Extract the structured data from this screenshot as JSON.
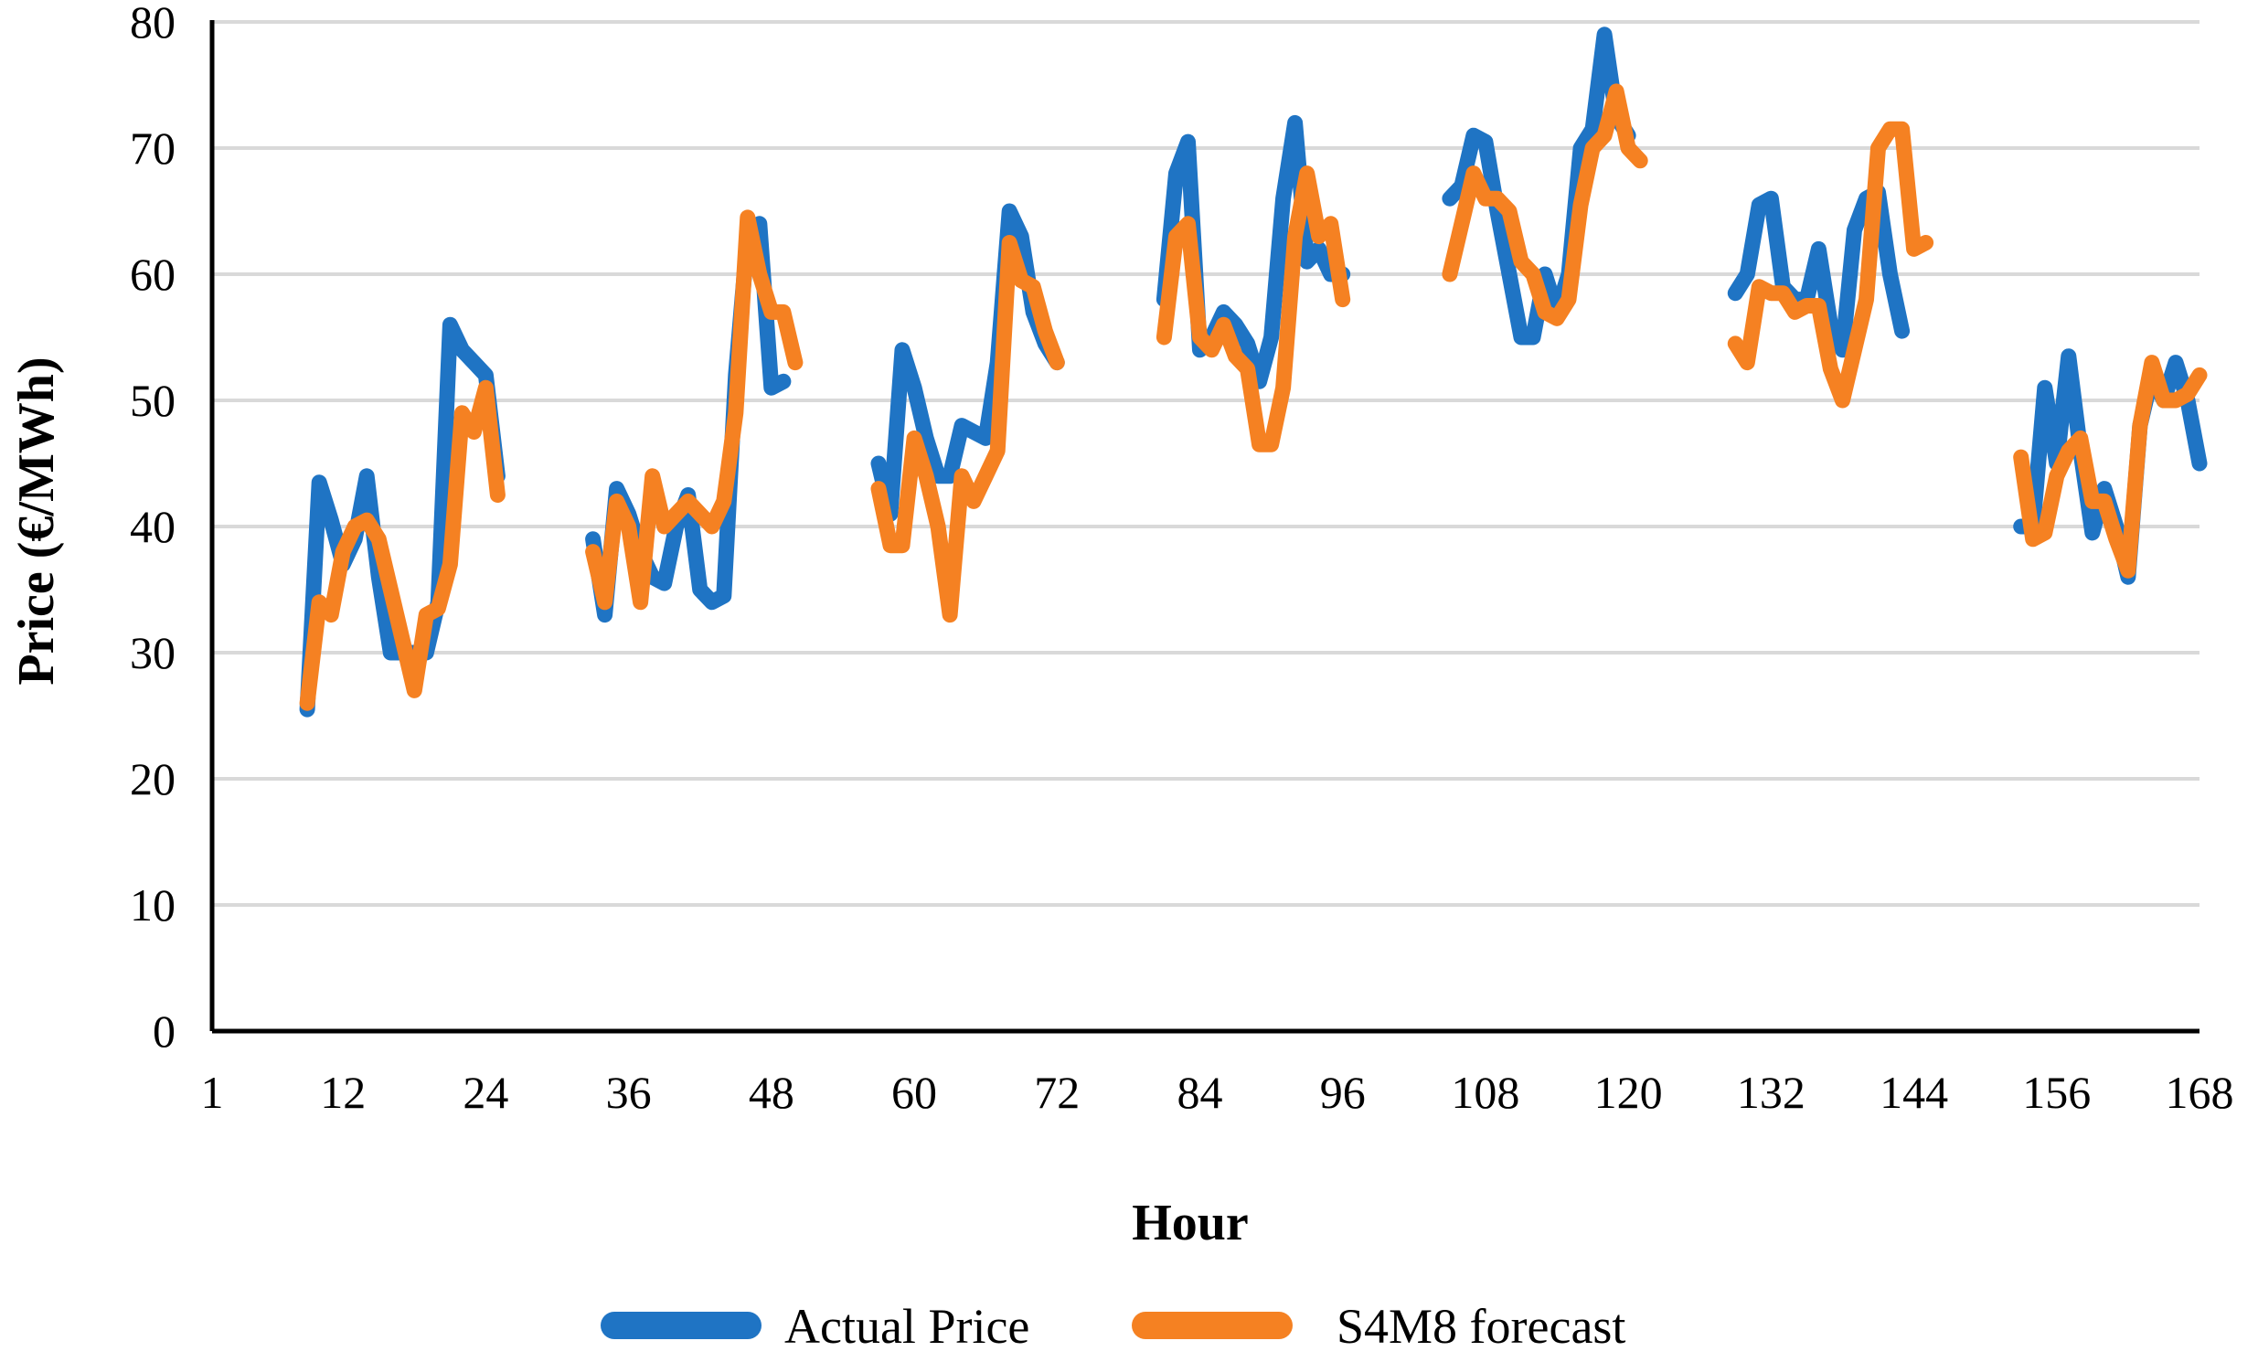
{
  "chart_data": {
    "type": "line",
    "title": "",
    "xlabel": "Hour",
    "ylabel": "Price (€/MWh)",
    "xlim": [
      1,
      168
    ],
    "ylim": [
      0,
      80
    ],
    "x_ticks": [
      1,
      12,
      24,
      36,
      48,
      60,
      72,
      84,
      96,
      108,
      120,
      132,
      144,
      156,
      168
    ],
    "y_ticks": [
      0,
      10,
      20,
      30,
      40,
      50,
      60,
      70,
      80
    ],
    "x_tick_labels": [
      "1",
      "12",
      "24",
      "36",
      "48",
      "60",
      "72",
      "84",
      "96",
      "108",
      "120",
      "132",
      "144",
      "156",
      "168"
    ],
    "y_tick_labels": [
      "0",
      "10",
      "20",
      "30",
      "40",
      "50",
      "60",
      "70",
      "80"
    ],
    "grid": true,
    "legend_position": "bottom",
    "series": [
      {
        "name": "Actual Price",
        "color": "#1f74c4",
        "segments": [
          [
            [
              9,
              25.5
            ],
            [
              10,
              43.5
            ],
            [
              11,
              40.5
            ],
            [
              12,
              37
            ],
            [
              13,
              39
            ],
            [
              14,
              44
            ],
            [
              15,
              36
            ],
            [
              16,
              30
            ],
            [
              17,
              30
            ],
            [
              18,
              30
            ],
            [
              19,
              30
            ],
            [
              20,
              34
            ],
            [
              21,
              56
            ],
            [
              22,
              54
            ],
            [
              23,
              53
            ],
            [
              24,
              52
            ],
            [
              25,
              44
            ]
          ],
          [
            [
              33,
              39
            ],
            [
              34,
              33
            ],
            [
              35,
              43
            ],
            [
              36,
              41
            ],
            [
              37,
              38
            ],
            [
              38,
              36
            ],
            [
              39,
              35.5
            ],
            [
              40,
              40
            ],
            [
              41,
              42.5
            ],
            [
              42,
              35
            ],
            [
              43,
              34
            ],
            [
              44,
              34.5
            ],
            [
              45,
              52
            ],
            [
              46,
              63
            ],
            [
              47,
              64
            ],
            [
              48,
              51
            ],
            [
              49,
              51.5
            ]
          ],
          [
            [
              57,
              45
            ],
            [
              58,
              41
            ],
            [
              59,
              54
            ],
            [
              60,
              51
            ],
            [
              61,
              47
            ],
            [
              62,
              44
            ],
            [
              63,
              44
            ],
            [
              64,
              48
            ],
            [
              65,
              47.5
            ],
            [
              66,
              47
            ],
            [
              67,
              53
            ],
            [
              68,
              65
            ],
            [
              69,
              63
            ],
            [
              70,
              57
            ],
            [
              71,
              54.5
            ],
            [
              72,
              53
            ]
          ],
          [
            [
              81,
              58
            ],
            [
              82,
              68
            ],
            [
              83,
              70.5
            ],
            [
              84,
              54
            ],
            [
              85,
              55
            ],
            [
              86,
              57
            ],
            [
              87,
              56
            ],
            [
              88,
              54.5
            ],
            [
              89,
              51.5
            ],
            [
              90,
              55
            ],
            [
              91,
              66
            ],
            [
              92,
              72
            ],
            [
              93,
              61
            ],
            [
              94,
              62
            ],
            [
              95,
              60
            ],
            [
              96,
              60
            ]
          ],
          [
            [
              105,
              66
            ],
            [
              106,
              67
            ],
            [
              107,
              71
            ],
            [
              108,
              70.5
            ],
            [
              109,
              65
            ],
            [
              110,
              60
            ],
            [
              111,
              55
            ],
            [
              112,
              55
            ],
            [
              113,
              60
            ],
            [
              114,
              57
            ],
            [
              115,
              60
            ],
            [
              116,
              70
            ],
            [
              117,
              71.5
            ],
            [
              118,
              79
            ],
            [
              119,
              72.5
            ],
            [
              120,
              71
            ]
          ],
          [
            [
              129,
              58.5
            ],
            [
              130,
              60
            ],
            [
              131,
              65.5
            ],
            [
              132,
              66
            ],
            [
              133,
              59
            ],
            [
              134,
              58
            ],
            [
              135,
              58
            ],
            [
              136,
              62
            ],
            [
              137,
              56
            ],
            [
              138,
              54
            ],
            [
              139,
              63.5
            ],
            [
              140,
              66
            ],
            [
              141,
              66.5
            ],
            [
              142,
              60
            ],
            [
              143,
              55.5
            ]
          ],
          [
            [
              153,
              40
            ],
            [
              154,
              40
            ],
            [
              155,
              51
            ],
            [
              156,
              45
            ],
            [
              157,
              53.5
            ],
            [
              158,
              46
            ],
            [
              159,
              39.5
            ],
            [
              160,
              43
            ],
            [
              161,
              40
            ],
            [
              162,
              36
            ],
            [
              163,
              48
            ],
            [
              164,
              52
            ],
            [
              165,
              50
            ],
            [
              166,
              53
            ],
            [
              167,
              50
            ],
            [
              168,
              45
            ]
          ]
        ]
      },
      {
        "name": "S4M8 forecast",
        "color": "#f58122",
        "segments": [
          [
            [
              9,
              26
            ],
            [
              10,
              34
            ],
            [
              11,
              33
            ],
            [
              12,
              38
            ],
            [
              13,
              40
            ],
            [
              14,
              40.5
            ],
            [
              15,
              39
            ],
            [
              16,
              35
            ],
            [
              17,
              31
            ],
            [
              18,
              27
            ],
            [
              19,
              33
            ],
            [
              20,
              33.5
            ],
            [
              21,
              37
            ],
            [
              22,
              49
            ],
            [
              23,
              47.5
            ],
            [
              24,
              51
            ],
            [
              25,
              42.5
            ]
          ],
          [
            [
              33,
              38
            ],
            [
              34,
              34
            ],
            [
              35,
              42
            ],
            [
              36,
              40
            ],
            [
              37,
              34
            ],
            [
              38,
              44
            ],
            [
              39,
              40
            ],
            [
              40,
              41
            ],
            [
              41,
              42
            ],
            [
              42,
              41
            ],
            [
              43,
              40
            ],
            [
              44,
              42
            ],
            [
              45,
              49
            ],
            [
              46,
              64.5
            ],
            [
              47,
              60
            ],
            [
              48,
              57
            ],
            [
              49,
              57
            ],
            [
              50,
              53
            ]
          ],
          [
            [
              57,
              43
            ],
            [
              58,
              38.5
            ],
            [
              59,
              38.5
            ],
            [
              60,
              47
            ],
            [
              61,
              44
            ],
            [
              62,
              40
            ],
            [
              63,
              33
            ],
            [
              64,
              44
            ],
            [
              65,
              42
            ],
            [
              66,
              44
            ],
            [
              67,
              46
            ],
            [
              68,
              62.5
            ],
            [
              69,
              59.5
            ],
            [
              70,
              59
            ],
            [
              71,
              55.5
            ],
            [
              72,
              53
            ]
          ],
          [
            [
              81,
              55
            ],
            [
              82,
              63
            ],
            [
              83,
              64
            ],
            [
              84,
              55
            ],
            [
              85,
              54
            ],
            [
              86,
              56
            ],
            [
              87,
              53.5
            ],
            [
              88,
              52.5
            ],
            [
              89,
              46.5
            ],
            [
              90,
              46.5
            ],
            [
              91,
              51
            ],
            [
              92,
              63
            ],
            [
              93,
              68
            ],
            [
              94,
              63
            ],
            [
              95,
              64
            ],
            [
              96,
              58
            ]
          ],
          [
            [
              105,
              60
            ],
            [
              106,
              64
            ],
            [
              107,
              68
            ],
            [
              108,
              66
            ],
            [
              109,
              66
            ],
            [
              110,
              65
            ],
            [
              111,
              61
            ],
            [
              112,
              60
            ],
            [
              113,
              57
            ],
            [
              114,
              56.5
            ],
            [
              115,
              58
            ],
            [
              116,
              65.5
            ],
            [
              117,
              70
            ],
            [
              118,
              71
            ],
            [
              119,
              74.5
            ],
            [
              120,
              70
            ],
            [
              121,
              69
            ]
          ],
          [
            [
              129,
              54.5
            ],
            [
              130,
              53
            ],
            [
              131,
              59
            ],
            [
              132,
              58.5
            ],
            [
              133,
              58.5
            ],
            [
              134,
              57
            ],
            [
              135,
              57.5
            ],
            [
              136,
              57.5
            ],
            [
              137,
              52.5
            ],
            [
              138,
              50
            ],
            [
              139,
              54
            ],
            [
              140,
              58
            ],
            [
              141,
              70
            ],
            [
              142,
              71.5
            ],
            [
              143,
              71.5
            ],
            [
              144,
              62
            ],
            [
              145,
              62.5
            ]
          ],
          [
            [
              153,
              45.5
            ],
            [
              154,
              39
            ],
            [
              155,
              39.5
            ],
            [
              156,
              44
            ],
            [
              157,
              46
            ],
            [
              158,
              47
            ],
            [
              159,
              42
            ],
            [
              160,
              42
            ],
            [
              161,
              39
            ],
            [
              162,
              36.5
            ],
            [
              163,
              48
            ],
            [
              164,
              53
            ],
            [
              165,
              50
            ],
            [
              166,
              50
            ],
            [
              167,
              50.5
            ],
            [
              168,
              52
            ]
          ]
        ]
      }
    ]
  }
}
